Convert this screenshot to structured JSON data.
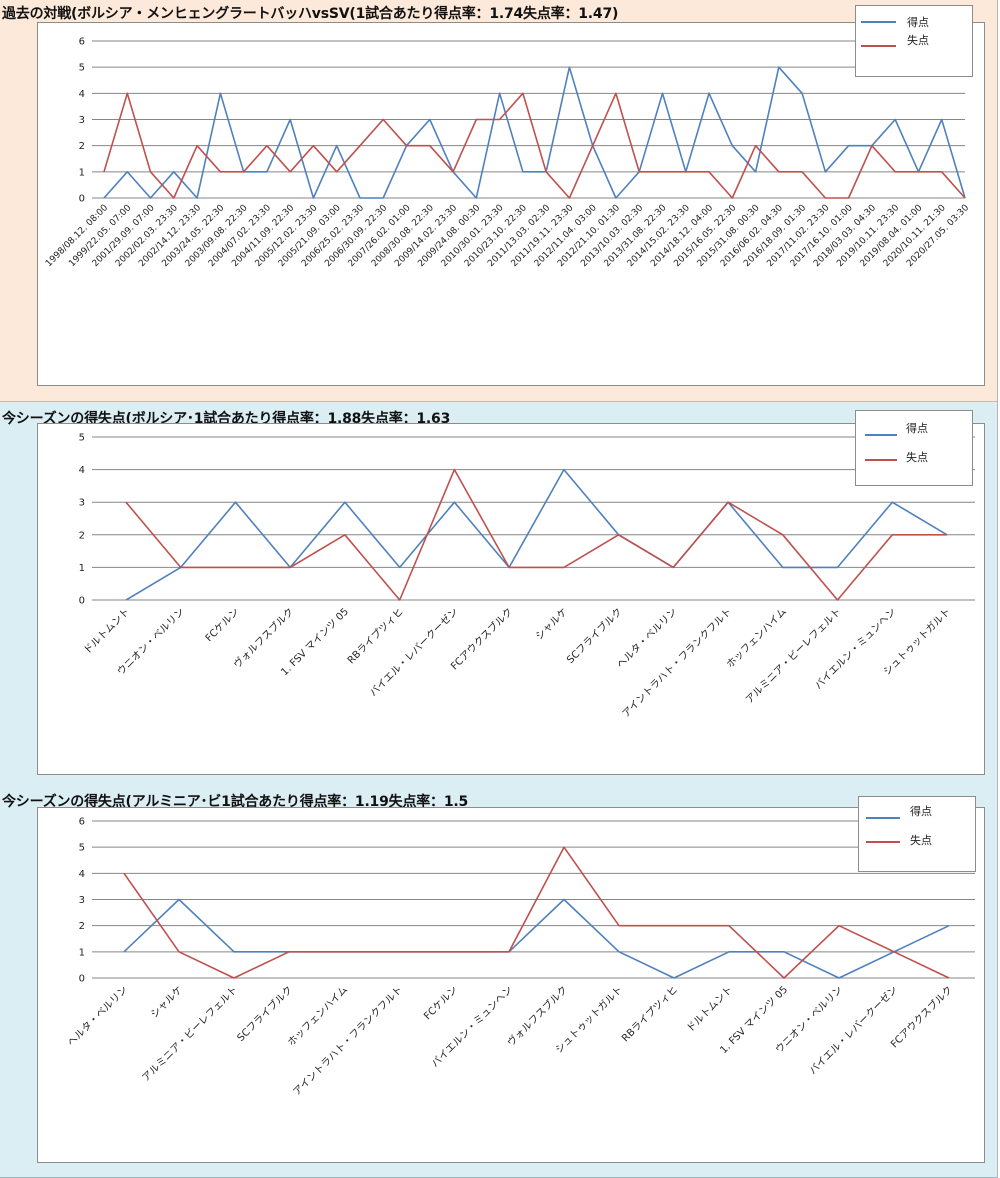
{
  "colors": {
    "goals": "#4f81bd",
    "conceded": "#c0504d",
    "grid": "#868686"
  },
  "chart_data": [
    {
      "type": "line",
      "title": "過去の対戦(ボルシア・メンヒェングラートバッハvsSV(1試合あたり得点率：1.74失点率：1.47)",
      "ylim": [
        0,
        6
      ],
      "yticks": [
        0,
        1,
        2,
        3,
        4,
        5,
        6
      ],
      "grid": true,
      "legend_position": "top-right",
      "x": [
        "1998/08.12. 08:00",
        "1999/22.05. 07:00",
        "2001/29.09. 07:00",
        "2002/02.03. 23:30",
        "2002/14.12. 23:30",
        "2003/24.05. 22:30",
        "2003/09.08. 22:30",
        "2004/07.02. 23:30",
        "2004/11.09. 22:30",
        "2005/12.02. 23:30",
        "2005/21.09. 03:00",
        "2006/25.02. 23:30",
        "2006/30.09. 22:30",
        "2007/26.02. 01:00",
        "2008/30.08. 22:30",
        "2009/14.02. 23:30",
        "2009/24.08. 00:30",
        "2010/30.01. 23:30",
        "2010/23.10. 22:30",
        "2011/13.03. 02:30",
        "2011/19.11. 23:30",
        "2012/11.04. 03:00",
        "2012/21.10. 01:30",
        "2013/10.03. 02:30",
        "2013/31.08. 22:30",
        "2014/15.02. 23:30",
        "2014/18.12. 04:00",
        "2015/16.05. 22:30",
        "2015/31.08. 00:30",
        "2016/06.02. 04:30",
        "2016/18.09. 01:30",
        "2017/11.02. 23:30",
        "2017/16.10. 01:00",
        "2018/03.03. 04:30",
        "2019/10.11. 23:30",
        "2019/08.04. 01:00",
        "2020/10.11. 21:30",
        "2020/27.05. 03:30"
      ],
      "series": [
        {
          "name": "得点",
          "values": [
            0,
            1,
            0,
            1,
            0,
            4,
            1,
            1,
            3,
            0,
            2,
            0,
            0,
            2,
            3,
            1,
            0,
            4,
            1,
            1,
            5,
            2,
            0,
            1,
            4,
            1,
            4,
            2,
            1,
            5,
            4,
            1,
            2,
            2,
            3,
            1,
            3,
            0
          ]
        },
        {
          "name": "失点",
          "values": [
            1,
            4,
            1,
            0,
            2,
            1,
            1,
            2,
            1,
            2,
            1,
            2,
            3,
            2,
            2,
            1,
            3,
            3,
            4,
            1,
            0,
            2,
            4,
            1,
            1,
            1,
            1,
            0,
            2,
            1,
            1,
            0,
            0,
            2,
            1,
            1,
            1,
            0
          ]
        }
      ]
    },
    {
      "type": "line",
      "title": "今シーズンの得失点(ボルシア･1試合あたり得点率：1.88失点率：1.63",
      "ylim": [
        0,
        5
      ],
      "yticks": [
        0,
        1,
        2,
        3,
        4,
        5
      ],
      "grid": true,
      "legend_position": "top-right",
      "x": [
        "ドルトムント",
        "ウニオン・ベルリン",
        "FCケルン",
        "ヴォルフスブルク",
        "1. FSV マインツ 05",
        "RBライプツィヒ",
        "バイエル・レバークーゼン",
        "FCアウクスブルク",
        "シャルケ",
        "SCフライブルク",
        "ヘルタ・ベルリン",
        "アイントラハト・フランクフルト",
        "ホッフェンハイム",
        "アルミニア・ビーレフェルト",
        "バイエルン・ミュンヘン",
        "シュトゥットガルト"
      ],
      "series": [
        {
          "name": "得点",
          "values": [
            0,
            1,
            3,
            1,
            3,
            1,
            3,
            1,
            4,
            2,
            1,
            3,
            1,
            1,
            3,
            2
          ]
        },
        {
          "name": "失点",
          "values": [
            3,
            1,
            1,
            1,
            2,
            0,
            4,
            1,
            1,
            2,
            1,
            3,
            2,
            0,
            2,
            2
          ]
        }
      ]
    },
    {
      "type": "line",
      "title": "今シーズンの得失点(アルミニア･ビ1試合あたり得点率：1.19失点率：1.5",
      "ylim": [
        0,
        6
      ],
      "yticks": [
        0,
        1,
        2,
        3,
        4,
        5,
        6
      ],
      "grid": true,
      "legend_position": "top-right",
      "x": [
        "ヘルタ・ベルリン",
        "シャルケ",
        "アルミニア・ビーレフェルト",
        "SCフライブルク",
        "ホッフェンハイム",
        "アイントラハト・フランクフルト",
        "FCケルン",
        "バイエルン・ミュンヘン",
        "ヴォルフスブルク",
        "シュトゥットガルト",
        "RBライプツィヒ",
        "ドルトムント",
        "1. FSV マインツ 05",
        "ウニオン・ベルリン",
        "バイエル・レバークーゼン",
        "FCアウクスブルク"
      ],
      "series": [
        {
          "name": "得点",
          "values": [
            1,
            3,
            1,
            1,
            1,
            1,
            1,
            1,
            3,
            1,
            0,
            1,
            1,
            0,
            1,
            2
          ]
        },
        {
          "name": "失点",
          "values": [
            4,
            1,
            0,
            1,
            1,
            1,
            1,
            1,
            5,
            2,
            2,
            2,
            0,
            2,
            1,
            0
          ]
        }
      ]
    }
  ]
}
